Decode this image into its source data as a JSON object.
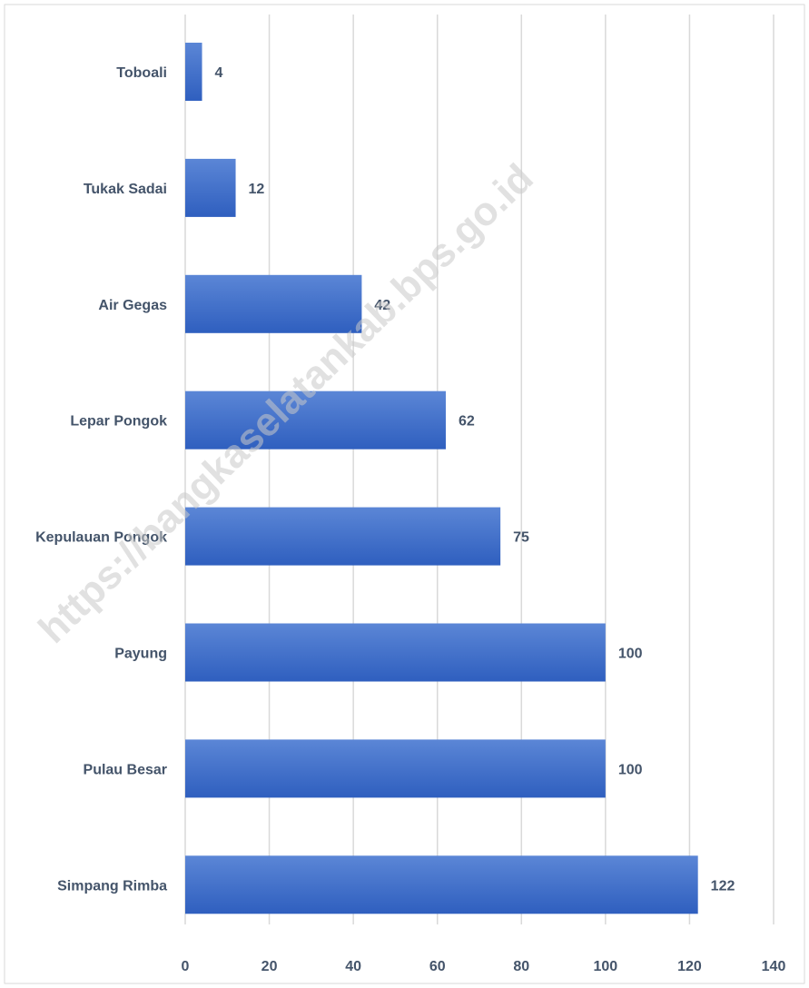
{
  "watermark": "https://bangkaselatankab.bps.go.id",
  "colors": {
    "bar_top": "#5b86d6",
    "bar_bottom": "#2f5fbf",
    "text": "#44546a",
    "grid": "#d9d9d9"
  },
  "chart_data": {
    "type": "bar",
    "orientation": "horizontal",
    "title": "",
    "xlabel": "",
    "ylabel": "",
    "categories": [
      "Toboali",
      "Tukak Sadai",
      "Air Gegas",
      "Lepar Pongok",
      "Kepulauan Pongok",
      "Payung",
      "Pulau Besar",
      "Simpang Rimba"
    ],
    "values": [
      4,
      12,
      42,
      62,
      75,
      100,
      100,
      122
    ],
    "data_labels": [
      "4",
      "12",
      "42",
      "62",
      "75",
      "100",
      "100",
      "122"
    ],
    "xlim": [
      0,
      140
    ],
    "ticks": [
      "0",
      "20",
      "40",
      "60",
      "80",
      "100",
      "120",
      "140"
    ],
    "tick_values": [
      0,
      20,
      40,
      60,
      80,
      100,
      120,
      140
    ],
    "grid": "vertical",
    "legend": "none"
  }
}
